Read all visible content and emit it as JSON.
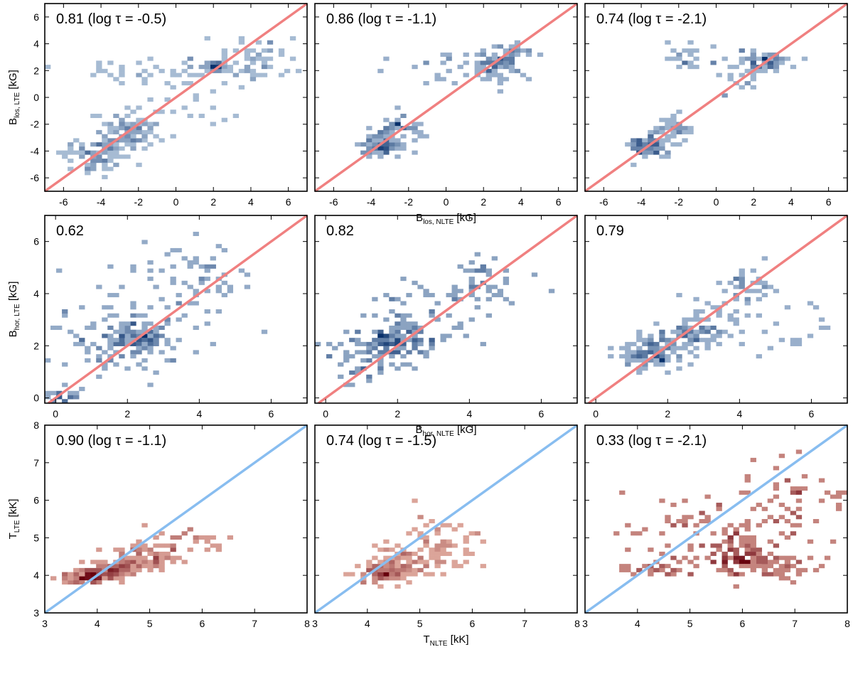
{
  "colors": {
    "blue_cmap_low": "#dbe9f6",
    "blue_cmap_high": "#08306b",
    "red_cmap_low": "#fdd4c2",
    "red_cmap_high": "#67000d",
    "diag_red": "#f08080",
    "diag_blue": "#88bdf0"
  },
  "chart_data": [
    {
      "row": 0,
      "col": 0,
      "type": "heatmap",
      "annotation": "0.81 (log τ = -0.5)",
      "xlim": [
        -7,
        7
      ],
      "ylim": [
        -7,
        7
      ],
      "xticks": [
        -6,
        -4,
        -2,
        0,
        2,
        4,
        6
      ],
      "yticks": [
        -6,
        -4,
        -2,
        0,
        2,
        4,
        6
      ],
      "ylabel": "B",
      "ylabel_sub": "los, LTE",
      "ylabel_unit": " [kG]",
      "xlabel": "",
      "xlabel_sub": "",
      "xlabel_unit": "",
      "clusters": [
        {
          "x": -4.5,
          "y": -4.3,
          "sx": 0.7,
          "sy": 0.7,
          "n": 70
        },
        {
          "x": -3.2,
          "y": -3.0,
          "sx": 0.8,
          "sy": 0.8,
          "n": 70
        },
        {
          "x": -2.3,
          "y": -2.4,
          "sx": 0.5,
          "sy": 0.5,
          "n": 35
        },
        {
          "x": 2.1,
          "y": 2.3,
          "sx": 0.35,
          "sy": 0.2,
          "n": 40
        },
        {
          "x": 4.0,
          "y": 2.6,
          "sx": 1.2,
          "sy": 0.9,
          "n": 60
        },
        {
          "x": -1.0,
          "y": 2.0,
          "sx": 3.0,
          "sy": 0.6,
          "n": 40
        },
        {
          "x": 0.0,
          "y": 0.0,
          "sx": 1.6,
          "sy": 1.6,
          "n": 25
        }
      ]
    },
    {
      "row": 0,
      "col": 1,
      "type": "heatmap",
      "annotation": "0.86 (log τ = -1.1)",
      "xlim": [
        -7,
        7
      ],
      "ylim": [
        -7,
        7
      ],
      "xticks": [
        -6,
        -4,
        -2,
        0,
        2,
        4,
        6
      ],
      "yticks": [
        -6,
        -4,
        -2,
        0,
        2,
        4,
        6
      ],
      "ylabel": "",
      "ylabel_sub": "",
      "ylabel_unit": "",
      "xlabel": "B",
      "xlabel_sub": "los, NLTE",
      "xlabel_unit": " [kG]",
      "clusters": [
        {
          "x": -3.6,
          "y": -3.6,
          "sx": 0.5,
          "sy": 0.45,
          "n": 70
        },
        {
          "x": -2.5,
          "y": -2.5,
          "sx": 0.6,
          "sy": 0.55,
          "n": 45
        },
        {
          "x": 2.6,
          "y": 2.5,
          "sx": 0.6,
          "sy": 0.5,
          "n": 60
        },
        {
          "x": 0.5,
          "y": 2.0,
          "sx": 1.8,
          "sy": 0.6,
          "n": 30
        },
        {
          "x": 3.5,
          "y": 3.2,
          "sx": 0.5,
          "sy": 0.4,
          "n": 20
        }
      ]
    },
    {
      "row": 0,
      "col": 2,
      "type": "heatmap",
      "annotation": "0.74 (log τ = -2.1)",
      "xlim": [
        -7,
        7
      ],
      "ylim": [
        -7,
        7
      ],
      "xticks": [
        -6,
        -4,
        -2,
        0,
        2,
        4,
        6
      ],
      "yticks": [
        -6,
        -4,
        -2,
        0,
        2,
        4,
        6
      ],
      "ylabel": "",
      "ylabel_sub": "",
      "ylabel_unit": "",
      "xlabel": "",
      "xlabel_sub": "",
      "xlabel_unit": "",
      "clusters": [
        {
          "x": -3.6,
          "y": -3.6,
          "sx": 0.6,
          "sy": 0.45,
          "n": 80
        },
        {
          "x": -2.4,
          "y": -2.4,
          "sx": 0.5,
          "sy": 0.5,
          "n": 35
        },
        {
          "x": 2.8,
          "y": 2.7,
          "sx": 0.5,
          "sy": 0.3,
          "n": 45
        },
        {
          "x": 1.5,
          "y": 2.8,
          "sx": 1.0,
          "sy": 0.4,
          "n": 30
        },
        {
          "x": -1.6,
          "y": 3.0,
          "sx": 0.4,
          "sy": 0.5,
          "n": 20
        },
        {
          "x": 1.0,
          "y": 1.3,
          "sx": 0.5,
          "sy": 0.5,
          "n": 15
        }
      ]
    },
    {
      "row": 1,
      "col": 0,
      "type": "heatmap",
      "annotation": "0.62",
      "xlim": [
        -0.3,
        7
      ],
      "ylim": [
        -0.2,
        7
      ],
      "xticks": [
        0,
        2,
        4,
        6
      ],
      "yticks": [
        0,
        2,
        4,
        6
      ],
      "ylabel": "B",
      "ylabel_sub": "hor, LTE",
      "ylabel_unit": " [kG]",
      "xlabel": "",
      "xlabel_sub": "",
      "xlabel_unit": "",
      "clusters": [
        {
          "x": 2.3,
          "y": 2.3,
          "sx": 0.45,
          "sy": 0.3,
          "n": 90
        },
        {
          "x": 0.2,
          "y": 0.1,
          "sx": 0.3,
          "sy": 0.15,
          "n": 25
        },
        {
          "x": 1.5,
          "y": 2.2,
          "sx": 1.3,
          "sy": 0.8,
          "n": 70
        },
        {
          "x": 4.0,
          "y": 4.5,
          "sx": 0.9,
          "sy": 0.7,
          "n": 45
        },
        {
          "x": 2.0,
          "y": 3.5,
          "sx": 1.6,
          "sy": 1.4,
          "n": 50
        }
      ]
    },
    {
      "row": 1,
      "col": 1,
      "type": "heatmap",
      "annotation": "0.82",
      "xlim": [
        -0.3,
        7
      ],
      "ylim": [
        -0.2,
        7
      ],
      "xticks": [
        0,
        2,
        4,
        6
      ],
      "yticks": [
        0,
        2,
        4,
        6
      ],
      "ylabel": "",
      "ylabel_sub": "",
      "ylabel_unit": "",
      "xlabel": "B",
      "xlabel_sub": "hor, NLTE",
      "xlabel_unit": " [kG]",
      "clusters": [
        {
          "x": 1.9,
          "y": 2.1,
          "sx": 0.55,
          "sy": 0.4,
          "n": 100
        },
        {
          "x": 1.3,
          "y": 2.0,
          "sx": 0.7,
          "sy": 0.55,
          "n": 50
        },
        {
          "x": 4.3,
          "y": 4.3,
          "sx": 0.5,
          "sy": 0.5,
          "n": 45
        },
        {
          "x": 3.0,
          "y": 3.2,
          "sx": 0.9,
          "sy": 0.7,
          "n": 40
        },
        {
          "x": 0.9,
          "y": 1.0,
          "sx": 0.3,
          "sy": 0.3,
          "n": 15
        }
      ]
    },
    {
      "row": 1,
      "col": 2,
      "type": "heatmap",
      "annotation": "0.79",
      "xlim": [
        -0.3,
        7
      ],
      "ylim": [
        -0.2,
        7
      ],
      "xticks": [
        0,
        2,
        4,
        6
      ],
      "yticks": [
        0,
        2,
        4,
        6
      ],
      "ylabel": "",
      "ylabel_sub": "",
      "ylabel_unit": "",
      "xlabel": "",
      "xlabel_sub": "",
      "xlabel_unit": "",
      "clusters": [
        {
          "x": 1.6,
          "y": 1.8,
          "sx": 0.5,
          "sy": 0.35,
          "n": 110
        },
        {
          "x": 2.6,
          "y": 2.4,
          "sx": 0.45,
          "sy": 0.3,
          "n": 60
        },
        {
          "x": 4.2,
          "y": 4.2,
          "sx": 0.35,
          "sy": 0.3,
          "n": 35
        },
        {
          "x": 3.3,
          "y": 3.0,
          "sx": 0.5,
          "sy": 0.5,
          "n": 30
        },
        {
          "x": 5.5,
          "y": 2.5,
          "sx": 1.0,
          "sy": 0.6,
          "n": 20
        }
      ]
    },
    {
      "row": 2,
      "col": 0,
      "type": "heatmap",
      "annotation": "0.90 (log τ = -1.1)",
      "xlim": [
        3,
        8
      ],
      "ylim": [
        3,
        8
      ],
      "xticks": [
        3,
        4,
        5,
        6,
        7,
        8
      ],
      "yticks": [
        3,
        4,
        5,
        6,
        7,
        8
      ],
      "ylabel": "T",
      "ylabel_sub": "LTE",
      "ylabel_unit": " [kK]",
      "xlabel": "",
      "xlabel_sub": "",
      "xlabel_unit": "",
      "clusters": [
        {
          "x": 3.8,
          "y": 3.95,
          "sx": 0.25,
          "sy": 0.08,
          "n": 90
        },
        {
          "x": 4.3,
          "y": 4.15,
          "sx": 0.25,
          "sy": 0.12,
          "n": 80
        },
        {
          "x": 4.9,
          "y": 4.45,
          "sx": 0.35,
          "sy": 0.18,
          "n": 70
        },
        {
          "x": 5.6,
          "y": 4.85,
          "sx": 0.4,
          "sy": 0.25,
          "n": 35
        }
      ]
    },
    {
      "row": 2,
      "col": 1,
      "type": "heatmap",
      "annotation": "0.74 (log τ = -1.5)",
      "xlim": [
        3,
        8
      ],
      "ylim": [
        3,
        8
      ],
      "xticks": [
        3,
        4,
        5,
        6,
        7,
        8
      ],
      "yticks": [
        3,
        4,
        5,
        6,
        7,
        8
      ],
      "ylabel": "",
      "ylabel_sub": "",
      "ylabel_unit": "",
      "xlabel": "T",
      "xlabel_sub": "NLTE",
      "xlabel_unit": " [kK]",
      "clusters": [
        {
          "x": 4.3,
          "y": 4.05,
          "sx": 0.25,
          "sy": 0.12,
          "n": 100
        },
        {
          "x": 4.8,
          "y": 4.4,
          "sx": 0.3,
          "sy": 0.2,
          "n": 70
        },
        {
          "x": 5.5,
          "y": 4.8,
          "sx": 0.4,
          "sy": 0.25,
          "n": 40
        },
        {
          "x": 5.3,
          "y": 5.3,
          "sx": 0.25,
          "sy": 0.2,
          "n": 15
        }
      ]
    },
    {
      "row": 2,
      "col": 2,
      "type": "heatmap",
      "annotation": "0.33 (log τ = -2.1)",
      "xlim": [
        3,
        8
      ],
      "ylim": [
        3,
        8
      ],
      "xticks": [
        3,
        4,
        5,
        6,
        7,
        8
      ],
      "yticks": [
        3,
        4,
        5,
        6,
        7,
        8
      ],
      "ylabel": "",
      "ylabel_sub": "",
      "ylabel_unit": "",
      "xlabel": "",
      "xlabel_sub": "",
      "xlabel_unit": "",
      "clusters": [
        {
          "x": 6.0,
          "y": 4.6,
          "sx": 0.2,
          "sy": 0.35,
          "n": 60
        },
        {
          "x": 6.5,
          "y": 4.3,
          "sx": 0.45,
          "sy": 0.2,
          "n": 55
        },
        {
          "x": 5.5,
          "y": 4.5,
          "sx": 0.6,
          "sy": 0.35,
          "n": 50
        },
        {
          "x": 4.8,
          "y": 5.0,
          "sx": 0.6,
          "sy": 0.6,
          "n": 45
        },
        {
          "x": 6.8,
          "y": 5.6,
          "sx": 0.5,
          "sy": 0.6,
          "n": 40
        },
        {
          "x": 7.3,
          "y": 6.2,
          "sx": 0.4,
          "sy": 0.4,
          "n": 20
        },
        {
          "x": 4.4,
          "y": 4.15,
          "sx": 0.3,
          "sy": 0.1,
          "n": 20
        }
      ]
    }
  ]
}
